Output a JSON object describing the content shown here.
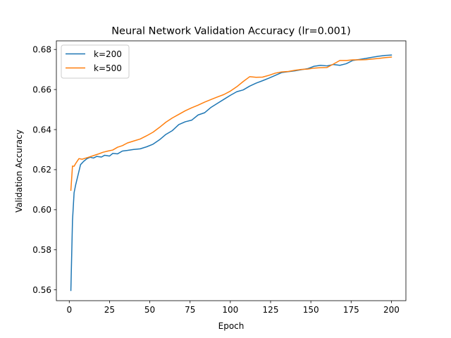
{
  "chart_data": {
    "type": "line",
    "title": "Neural Network Validation Accuracy (lr=0.001)",
    "xlabel": "Epoch",
    "ylabel": "Validation Accuracy",
    "xlim": [
      -8,
      209
    ],
    "ylim": [
      0.5546,
      0.6843
    ],
    "xticks": [
      0,
      25,
      50,
      75,
      100,
      125,
      150,
      175,
      200
    ],
    "yticks": [
      0.56,
      0.58,
      0.6,
      0.62,
      0.64,
      0.66,
      0.68
    ],
    "ytick_labels": [
      "0.56",
      "0.58",
      "0.60",
      "0.62",
      "0.64",
      "0.66",
      "0.68"
    ],
    "grid": false,
    "legend_position": "upper-left",
    "series": [
      {
        "name": "k=200",
        "color": "#1f77b4",
        "points": [
          [
            1,
            0.5597
          ],
          [
            2,
            0.5945
          ],
          [
            3,
            0.6085
          ],
          [
            4,
            0.6125
          ],
          [
            5,
            0.6158
          ],
          [
            7,
            0.6225
          ],
          [
            9,
            0.6242
          ],
          [
            11,
            0.6255
          ],
          [
            13,
            0.6262
          ],
          [
            15,
            0.6258
          ],
          [
            17,
            0.6266
          ],
          [
            20,
            0.6263
          ],
          [
            22,
            0.6272
          ],
          [
            25,
            0.6268
          ],
          [
            27,
            0.6281
          ],
          [
            30,
            0.6279
          ],
          [
            33,
            0.6293
          ],
          [
            36,
            0.6296
          ],
          [
            40,
            0.6301
          ],
          [
            44,
            0.6304
          ],
          [
            48,
            0.6314
          ],
          [
            52,
            0.6327
          ],
          [
            56,
            0.6349
          ],
          [
            60,
            0.6376
          ],
          [
            64,
            0.6395
          ],
          [
            68,
            0.6425
          ],
          [
            72,
            0.6439
          ],
          [
            76,
            0.6447
          ],
          [
            80,
            0.6473
          ],
          [
            84,
            0.6484
          ],
          [
            88,
            0.6511
          ],
          [
            92,
            0.6531
          ],
          [
            96,
            0.6551
          ],
          [
            100,
            0.6571
          ],
          [
            104,
            0.6589
          ],
          [
            108,
            0.6598
          ],
          [
            112,
            0.6617
          ],
          [
            116,
            0.6632
          ],
          [
            120,
            0.6644
          ],
          [
            124,
            0.6657
          ],
          [
            128,
            0.6671
          ],
          [
            132,
            0.6685
          ],
          [
            136,
            0.6689
          ],
          [
            140,
            0.6693
          ],
          [
            144,
            0.6699
          ],
          [
            148,
            0.6704
          ],
          [
            152,
            0.6716
          ],
          [
            156,
            0.6721
          ],
          [
            160,
            0.6718
          ],
          [
            164,
            0.6725
          ],
          [
            168,
            0.6721
          ],
          [
            172,
            0.6729
          ],
          [
            176,
            0.6745
          ],
          [
            180,
            0.675
          ],
          [
            184,
            0.6755
          ],
          [
            188,
            0.6761
          ],
          [
            192,
            0.6766
          ],
          [
            196,
            0.677
          ],
          [
            200,
            0.6772
          ]
        ]
      },
      {
        "name": "k=500",
        "color": "#ff7f0e",
        "points": [
          [
            1,
            0.6097
          ],
          [
            2,
            0.6218
          ],
          [
            3,
            0.6217
          ],
          [
            4,
            0.6231
          ],
          [
            5,
            0.6243
          ],
          [
            6,
            0.6255
          ],
          [
            8,
            0.6252
          ],
          [
            10,
            0.6257
          ],
          [
            12,
            0.6262
          ],
          [
            15,
            0.627
          ],
          [
            18,
            0.6278
          ],
          [
            21,
            0.6287
          ],
          [
            24,
            0.6293
          ],
          [
            27,
            0.6298
          ],
          [
            30,
            0.6312
          ],
          [
            33,
            0.632
          ],
          [
            36,
            0.6333
          ],
          [
            40,
            0.6343
          ],
          [
            44,
            0.6353
          ],
          [
            48,
            0.6369
          ],
          [
            52,
            0.6387
          ],
          [
            56,
            0.6411
          ],
          [
            60,
            0.6437
          ],
          [
            64,
            0.6458
          ],
          [
            68,
            0.6476
          ],
          [
            72,
            0.6494
          ],
          [
            76,
            0.6509
          ],
          [
            80,
            0.6522
          ],
          [
            84,
            0.6537
          ],
          [
            88,
            0.655
          ],
          [
            92,
            0.6563
          ],
          [
            96,
            0.6575
          ],
          [
            100,
            0.6592
          ],
          [
            104,
            0.6614
          ],
          [
            108,
            0.664
          ],
          [
            112,
            0.6664
          ],
          [
            116,
            0.6661
          ],
          [
            120,
            0.6662
          ],
          [
            124,
            0.6671
          ],
          [
            128,
            0.6682
          ],
          [
            132,
            0.6688
          ],
          [
            136,
            0.669
          ],
          [
            140,
            0.6696
          ],
          [
            144,
            0.67
          ],
          [
            148,
            0.6702
          ],
          [
            152,
            0.6707
          ],
          [
            156,
            0.6709
          ],
          [
            160,
            0.671
          ],
          [
            164,
            0.6727
          ],
          [
            168,
            0.6745
          ],
          [
            172,
            0.6745
          ],
          [
            176,
            0.6748
          ],
          [
            180,
            0.6748
          ],
          [
            184,
            0.6749
          ],
          [
            188,
            0.6752
          ],
          [
            192,
            0.6755
          ],
          [
            196,
            0.6759
          ],
          [
            200,
            0.6762
          ]
        ]
      }
    ]
  }
}
